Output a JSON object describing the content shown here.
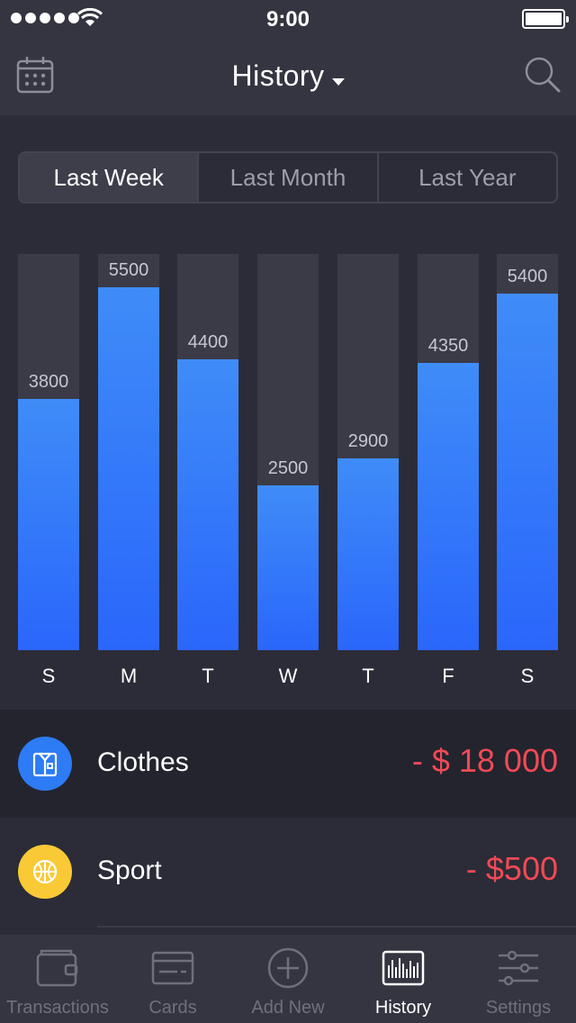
{
  "status_bar": {
    "time": "9:00"
  },
  "header": {
    "title": "History",
    "calendar_icon": "calendar-icon",
    "search_icon": "search-icon"
  },
  "segments": [
    {
      "label": "Last Week",
      "active": true
    },
    {
      "label": "Last Month",
      "active": false
    },
    {
      "label": "Last Year",
      "active": false
    }
  ],
  "chart_data": {
    "type": "bar",
    "categories": [
      "S",
      "M",
      "T",
      "W",
      "T",
      "F",
      "S"
    ],
    "values": [
      3800,
      5500,
      4400,
      2500,
      2900,
      4350,
      5400
    ],
    "value_labels": [
      "3800",
      "5500",
      "4400",
      "2500",
      "2900",
      "4350",
      "5400"
    ],
    "ylim": [
      0,
      6000
    ],
    "grid": false,
    "colors": {
      "bar": "#2a6cfb",
      "track": "#3a3b47"
    }
  },
  "transactions": [
    {
      "label": "Clothes",
      "amount": "- $ 18 000",
      "icon": "shirt-icon",
      "color": "#2d7bf5"
    },
    {
      "label": "Sport",
      "amount": "- $500",
      "icon": "basketball-icon",
      "color": "#f9c936"
    }
  ],
  "tabs": [
    {
      "label": "Transactions",
      "icon": "wallet-icon",
      "active": false
    },
    {
      "label": "Cards",
      "icon": "card-icon",
      "active": false
    },
    {
      "label": "Add New",
      "icon": "plus-circle-icon",
      "active": false
    },
    {
      "label": "History",
      "icon": "history-icon",
      "active": true
    },
    {
      "label": "Settings",
      "icon": "sliders-icon",
      "active": false
    }
  ],
  "colors": {
    "accent": "#2a6cfb",
    "negative": "#f04a55",
    "background": "#2b2c37"
  }
}
